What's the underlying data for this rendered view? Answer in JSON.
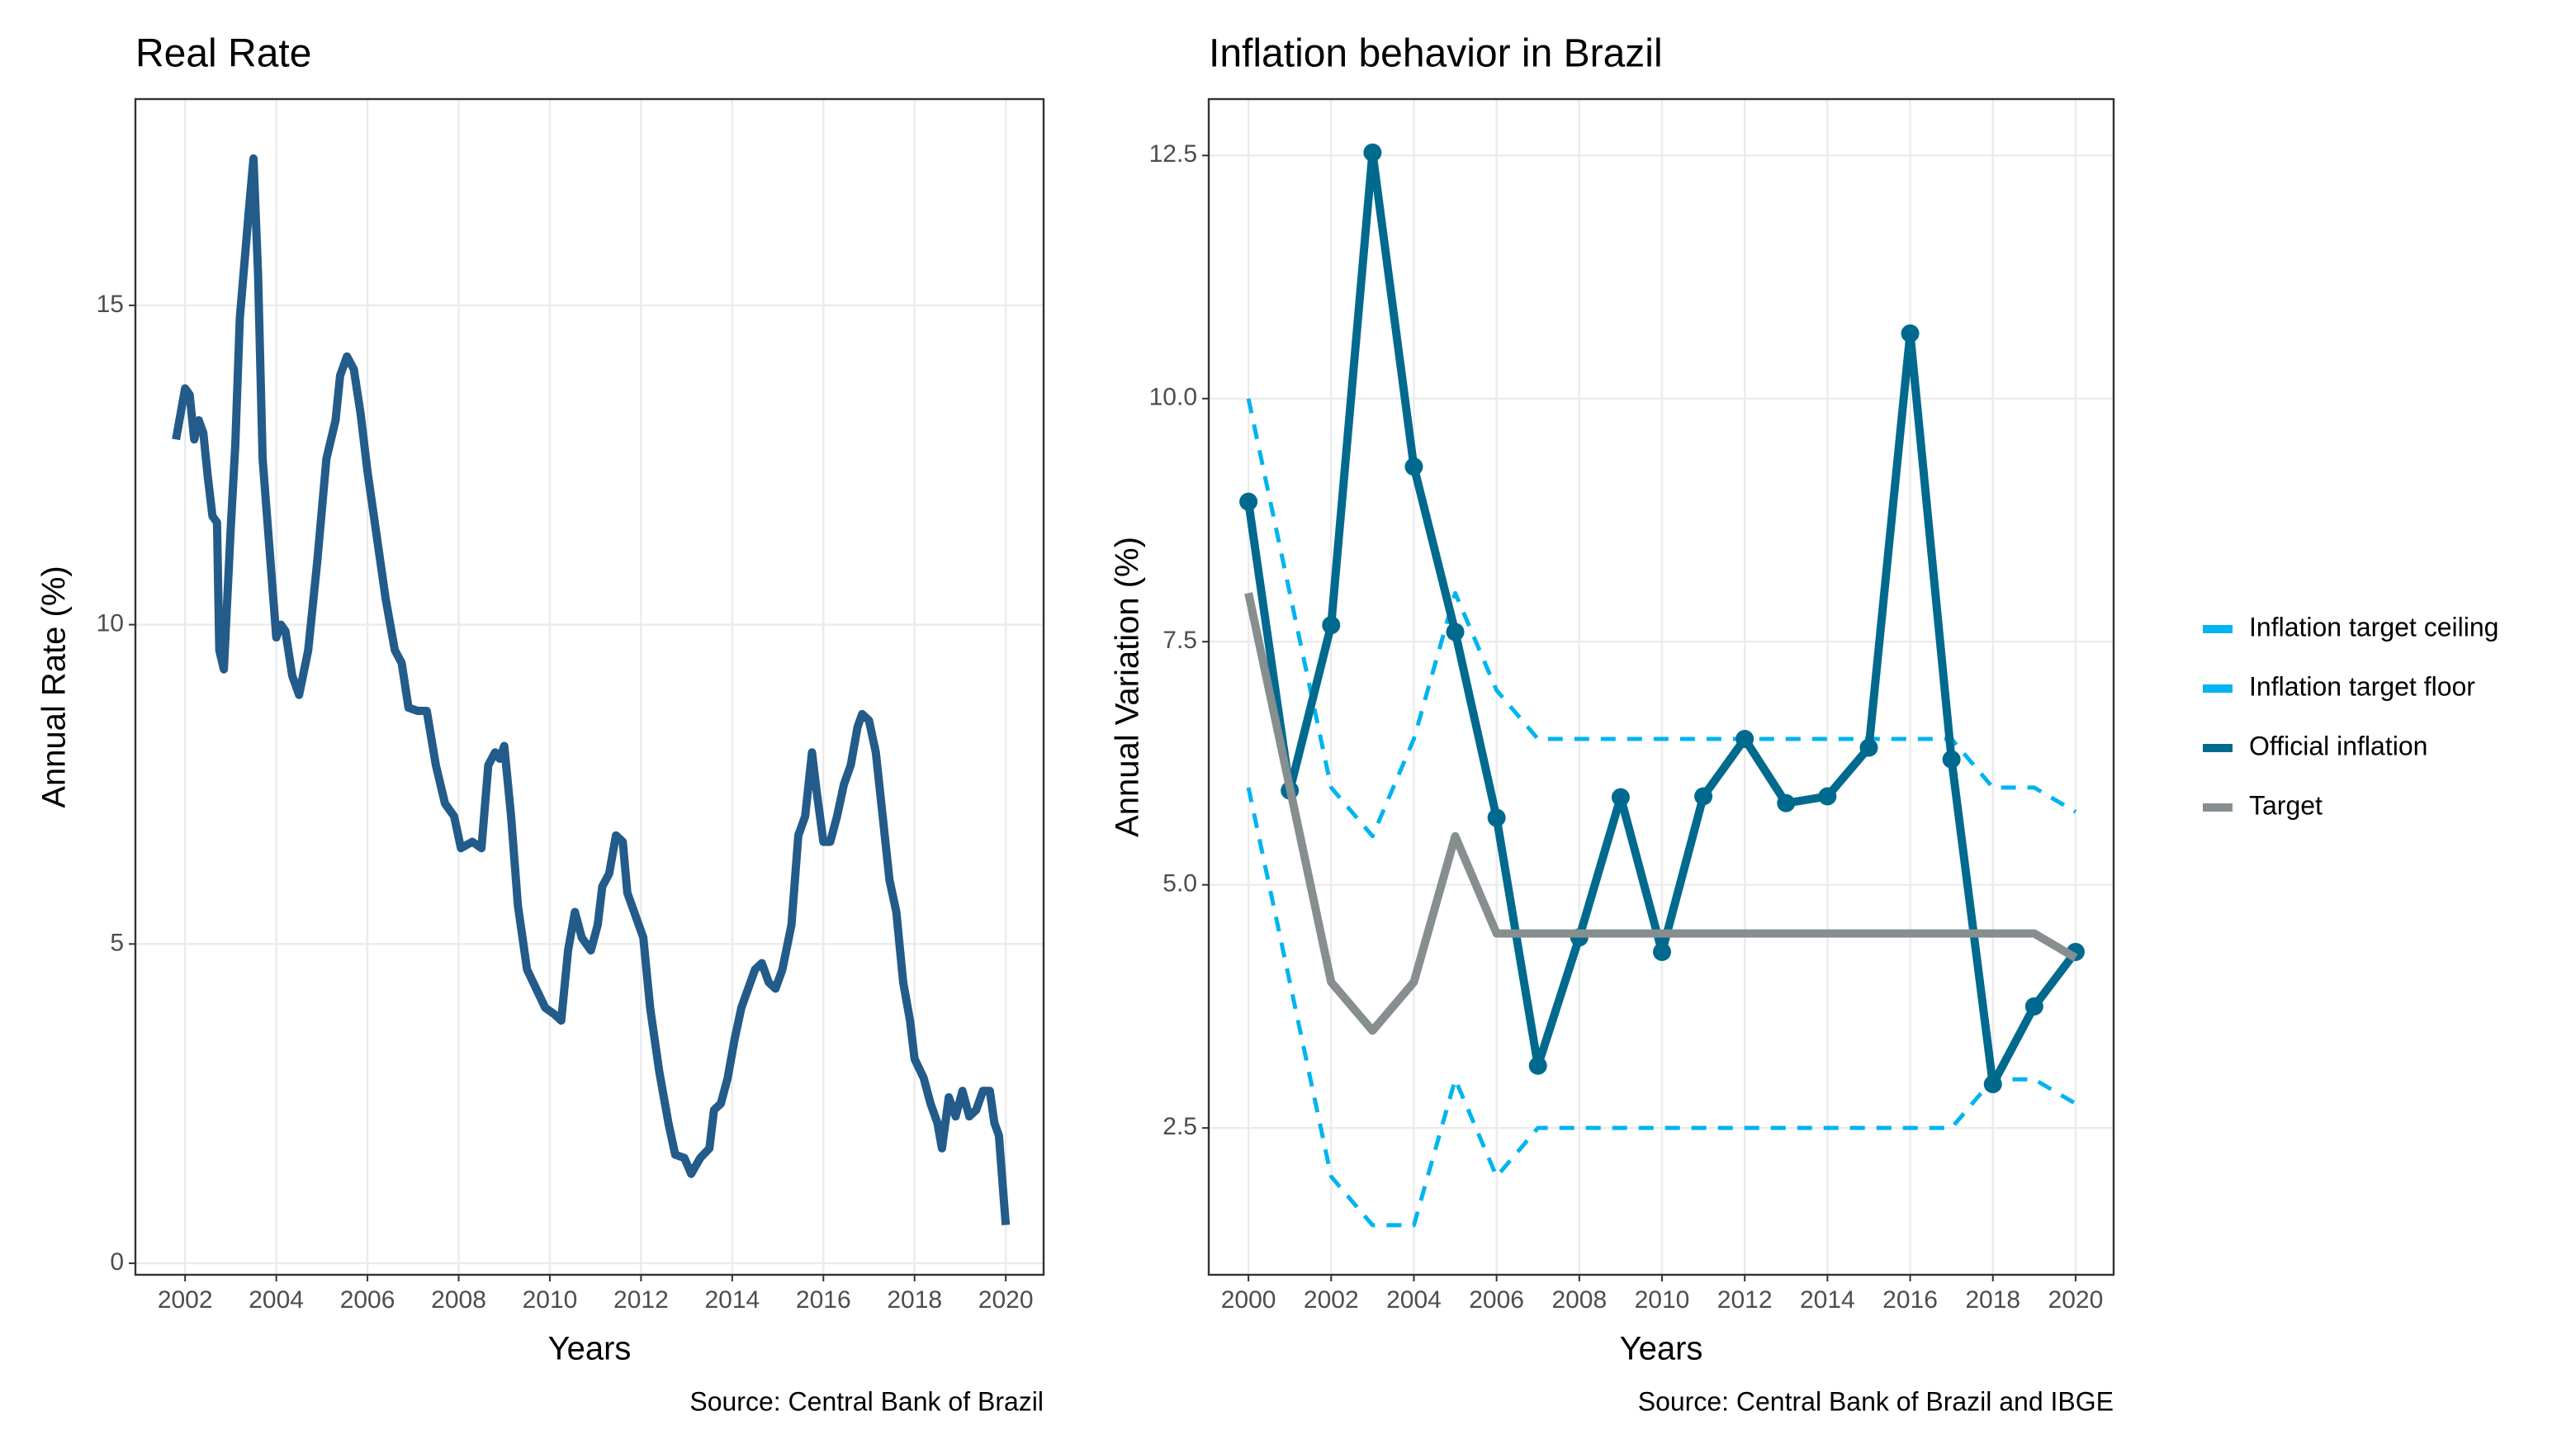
{
  "chart_data": [
    {
      "type": "line",
      "title": "Real Rate",
      "xlabel": "Years",
      "ylabel": "Annual Rate (%)",
      "caption": "Source: Central Bank of Brazil",
      "x": [
        2001.8,
        2002.0,
        2002.1,
        2002.2,
        2002.3,
        2002.4,
        2002.5,
        2002.6,
        2002.7,
        2002.75,
        2002.85,
        2003.0,
        2003.1,
        2003.2,
        2003.4,
        2003.5,
        2003.6,
        2003.7,
        2003.85,
        2004.0,
        2004.1,
        2004.2,
        2004.35,
        2004.5,
        2004.7,
        2004.9,
        2005.1,
        2005.3,
        2005.4,
        2005.55,
        2005.7,
        2005.85,
        2006.0,
        2006.2,
        2006.4,
        2006.6,
        2006.75,
        2006.9,
        2007.1,
        2007.3,
        2007.5,
        2007.7,
        2007.9,
        2008.05,
        2008.3,
        2008.5,
        2008.65,
        2008.8,
        2008.9,
        2009.0,
        2009.15,
        2009.3,
        2009.5,
        2009.7,
        2009.9,
        2010.1,
        2010.25,
        2010.4,
        2010.55,
        2010.7,
        2010.9,
        2011.05,
        2011.15,
        2011.3,
        2011.45,
        2011.6,
        2011.7,
        2011.9,
        2012.05,
        2012.2,
        2012.4,
        2012.6,
        2012.75,
        2012.95,
        2013.1,
        2013.3,
        2013.5,
        2013.6,
        2013.75,
        2013.9,
        2014.05,
        2014.2,
        2014.35,
        2014.5,
        2014.65,
        2014.8,
        2014.95,
        2015.1,
        2015.3,
        2015.45,
        2015.6,
        2015.75,
        2015.85,
        2016.0,
        2016.15,
        2016.3,
        2016.45,
        2016.6,
        2016.75,
        2016.85,
        2017.0,
        2017.15,
        2017.3,
        2017.45,
        2017.6,
        2017.75,
        2017.9,
        2018.0,
        2018.2,
        2018.35,
        2018.5,
        2018.6,
        2018.75,
        2018.9,
        2019.05,
        2019.2,
        2019.35,
        2019.5,
        2019.65,
        2019.75,
        2019.85,
        2020.0
      ],
      "series": [
        {
          "color": "#235b8a",
          "values": [
            12.9,
            13.7,
            13.6,
            12.9,
            13.2,
            13.0,
            12.3,
            11.7,
            11.6,
            9.6,
            9.3,
            11.5,
            12.8,
            14.8,
            16.5,
            17.3,
            15.5,
            12.6,
            11.2,
            9.8,
            10.0,
            9.9,
            9.2,
            8.9,
            9.6,
            11.0,
            12.6,
            13.2,
            13.9,
            14.2,
            14.0,
            13.3,
            12.4,
            11.4,
            10.4,
            9.6,
            9.4,
            8.7,
            8.65,
            8.65,
            7.8,
            7.2,
            7.0,
            6.5,
            6.6,
            6.5,
            7.8,
            8.0,
            7.9,
            8.1,
            7.0,
            5.6,
            4.6,
            4.3,
            4.0,
            3.9,
            3.8,
            4.9,
            5.5,
            5.1,
            4.9,
            5.3,
            5.9,
            6.1,
            6.7,
            6.6,
            5.8,
            5.4,
            5.1,
            4.0,
            3.0,
            2.2,
            1.7,
            1.65,
            1.4,
            1.65,
            1.8,
            2.4,
            2.5,
            2.9,
            3.5,
            4.0,
            4.3,
            4.6,
            4.7,
            4.4,
            4.3,
            4.6,
            5.3,
            6.7,
            7.0,
            8.0,
            7.4,
            6.6,
            6.6,
            7.0,
            7.5,
            7.8,
            8.4,
            8.6,
            8.5,
            8.0,
            7.0,
            6.0,
            5.5,
            4.4,
            3.8,
            3.2,
            2.9,
            2.5,
            2.2,
            1.8,
            2.6,
            2.3,
            2.7,
            2.3,
            2.4,
            2.7,
            2.7,
            2.2,
            2.0,
            0.6
          ]
        }
      ],
      "xlim": [
        2000.91,
        2020.83
      ],
      "xticks": [
        2002,
        2004,
        2006,
        2008,
        2010,
        2012,
        2014,
        2016,
        2018,
        2020
      ],
      "ylim": [
        -0.18,
        18.23
      ],
      "yticks": [
        0,
        5,
        10,
        15
      ],
      "grid": true
    },
    {
      "type": "line",
      "title": "Inflation behavior in Brazil",
      "xlabel": "Years",
      "ylabel": "Annual Variation (%)",
      "caption": "Source: Central Bank of Brazil and IBGE",
      "x": [
        2000,
        2001,
        2002,
        2003,
        2004,
        2005,
        2006,
        2007,
        2008,
        2009,
        2010,
        2011,
        2012,
        2013,
        2014,
        2015,
        2016,
        2017,
        2018,
        2019,
        2020
      ],
      "series": [
        {
          "name": "Inflation target ceiling",
          "color": "#00b4f0",
          "dashed": true,
          "values": [
            10,
            8,
            6,
            5.5,
            6.5,
            8,
            7,
            6.5,
            6.5,
            6.5,
            6.5,
            6.5,
            6.5,
            6.5,
            6.5,
            6.5,
            6.5,
            6.5,
            6,
            6,
            5.75
          ]
        },
        {
          "name": "Inflation target floor",
          "color": "#00b4f0",
          "dashed": true,
          "values": [
            6,
            4,
            2,
            1.5,
            1.5,
            3,
            2,
            2.5,
            2.5,
            2.5,
            2.5,
            2.5,
            2.5,
            2.5,
            2.5,
            2.5,
            2.5,
            2.5,
            3,
            3,
            2.75
          ]
        },
        {
          "name": "Official inflation",
          "color": "#006a8e",
          "markers": true,
          "values": [
            8.94,
            5.97,
            7.67,
            12.53,
            9.3,
            7.6,
            5.69,
            3.14,
            4.46,
            5.9,
            4.31,
            5.91,
            6.5,
            5.84,
            5.91,
            6.41,
            10.67,
            6.29,
            2.95,
            3.75,
            4.31
          ]
        },
        {
          "name": "Target",
          "color": "#868e8f",
          "values": [
            8,
            6,
            4,
            3.5,
            4,
            5.5,
            4.5,
            4.5,
            4.5,
            4.5,
            4.5,
            4.5,
            4.5,
            4.5,
            4.5,
            4.5,
            4.5,
            4.5,
            4.5,
            4.5,
            4.25
          ]
        }
      ],
      "xlim": [
        1999.04,
        2020.92
      ],
      "xticks": [
        2000,
        2002,
        2004,
        2006,
        2008,
        2010,
        2012,
        2014,
        2016,
        2018,
        2020
      ],
      "ylim": [
        0.99,
        13.08
      ],
      "yticks": [
        {
          "value": 2.5,
          "label": "2.5"
        },
        {
          "value": 5,
          "label": "5.0"
        },
        {
          "value": 7.5,
          "label": "7.5"
        },
        {
          "value": 10,
          "label": "10.0"
        },
        {
          "value": 12.5,
          "label": "12.5"
        }
      ],
      "grid": true,
      "legend": "right"
    }
  ]
}
